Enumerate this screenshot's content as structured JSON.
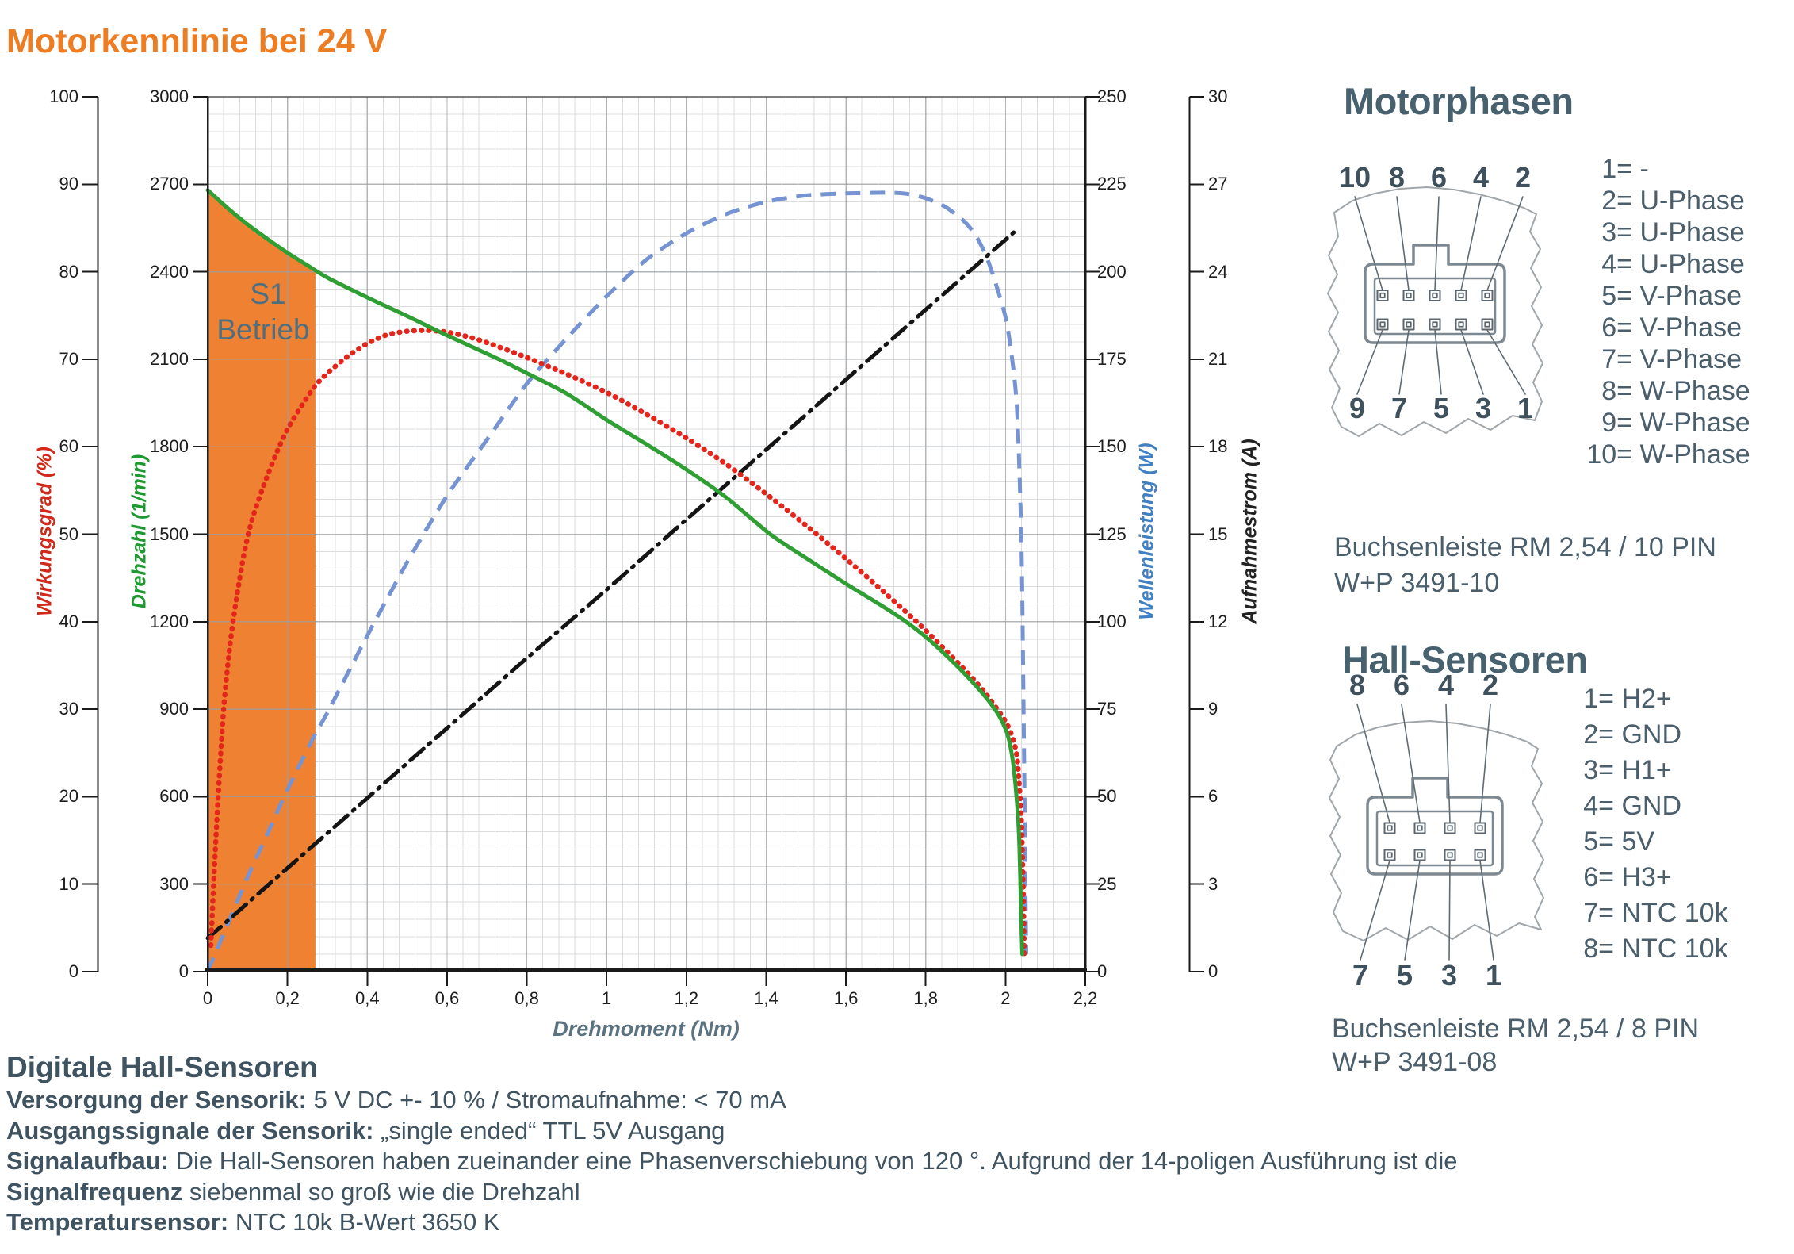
{
  "title": "Motorkennlinie bei 24 V",
  "chart_data": {
    "type": "line",
    "title": "Motorkennlinie bei 24 V",
    "x_axis": {
      "label": "Drehmoment (Nm)",
      "min": 0,
      "max": 2.2,
      "major_step": 0.2,
      "minor_step": 0.04,
      "tick_labels": [
        "0",
        "0,2",
        "0,4",
        "0,6",
        "0,8",
        "1",
        "1,2",
        "1,4",
        "1,6",
        "1,8",
        "2",
        "2,2"
      ]
    },
    "y_axes": [
      {
        "id": "wirkungsgrad",
        "label": "Wirkungsgrad (%)",
        "color": "#D2291B",
        "min": 0,
        "max": 100,
        "major_step": 10,
        "side": "left-outer"
      },
      {
        "id": "drehzahl",
        "label": "Drehzahl (1/min)",
        "color": "#1E9A31",
        "min": 0,
        "max": 3000,
        "major_step": 300,
        "minor_step": 60,
        "side": "left"
      },
      {
        "id": "wellenleistung",
        "label": "Wellenleistung (W)",
        "color": "#4181C3",
        "min": 0,
        "max": 250,
        "major_step": 25,
        "side": "right"
      },
      {
        "id": "aufnahmestrom",
        "label": "Aufnahmestrom (A)",
        "color": "#222222",
        "min": 0,
        "max": 30,
        "major_step": 3,
        "side": "right-outer"
      }
    ],
    "s1_region": {
      "label": [
        "S1",
        "Betrieb"
      ],
      "x_start": 0,
      "x_end": 0.27,
      "fill": "#EF8133"
    },
    "grid": true,
    "series": [
      {
        "name": "Drehzahl",
        "axis": "drehzahl",
        "color": "#2F9E33",
        "style": "solid",
        "points": [
          [
            0,
            2680
          ],
          [
            0.05,
            2618
          ],
          [
            0.1,
            2562
          ],
          [
            0.15,
            2512
          ],
          [
            0.2,
            2465
          ],
          [
            0.25,
            2422
          ],
          [
            0.3,
            2380
          ],
          [
            0.4,
            2312
          ],
          [
            0.5,
            2248
          ],
          [
            0.6,
            2182
          ],
          [
            0.73,
            2100
          ],
          [
            0.8,
            2052
          ],
          [
            0.9,
            1982
          ],
          [
            1.0,
            1892
          ],
          [
            1.11,
            1800
          ],
          [
            1.2,
            1722
          ],
          [
            1.3,
            1626
          ],
          [
            1.41,
            1500
          ],
          [
            1.5,
            1418
          ],
          [
            1.6,
            1330
          ],
          [
            1.7,
            1246
          ],
          [
            1.75,
            1200
          ],
          [
            1.8,
            1148
          ],
          [
            1.85,
            1086
          ],
          [
            1.9,
            1018
          ],
          [
            1.95,
            942
          ],
          [
            1.98,
            886
          ],
          [
            2.0,
            832
          ],
          [
            2.01,
            786
          ],
          [
            2.02,
            706
          ],
          [
            2.03,
            556
          ],
          [
            2.035,
            420
          ],
          [
            2.04,
            150
          ],
          [
            2.042,
            60
          ]
        ]
      },
      {
        "name": "Wirkungsgrad",
        "axis": "wirkungsgrad",
        "color": "#E3251C",
        "style": "dotted",
        "points": [
          [
            0.008,
            3
          ],
          [
            0.015,
            10
          ],
          [
            0.025,
            19
          ],
          [
            0.04,
            30
          ],
          [
            0.055,
            37
          ],
          [
            0.07,
            42
          ],
          [
            0.09,
            47.5
          ],
          [
            0.11,
            51.5
          ],
          [
            0.14,
            55.5
          ],
          [
            0.17,
            59
          ],
          [
            0.2,
            62
          ],
          [
            0.24,
            65
          ],
          [
            0.27,
            67
          ],
          [
            0.3,
            68.4
          ],
          [
            0.35,
            70.3
          ],
          [
            0.4,
            71.8
          ],
          [
            0.45,
            72.8
          ],
          [
            0.5,
            73.2
          ],
          [
            0.55,
            73.3
          ],
          [
            0.6,
            73.1
          ],
          [
            0.65,
            72.6
          ],
          [
            0.7,
            71.9
          ],
          [
            0.8,
            70.2
          ],
          [
            0.9,
            68.3
          ],
          [
            1.0,
            66.2
          ],
          [
            1.1,
            63.7
          ],
          [
            1.2,
            61
          ],
          [
            1.3,
            58
          ],
          [
            1.4,
            54.6
          ],
          [
            1.5,
            51
          ],
          [
            1.6,
            47.2
          ],
          [
            1.7,
            43.2
          ],
          [
            1.8,
            39
          ],
          [
            1.9,
            34.4
          ],
          [
            1.95,
            31.8
          ],
          [
            2.0,
            28.6
          ],
          [
            2.02,
            26.4
          ],
          [
            2.03,
            24
          ],
          [
            2.04,
            17
          ],
          [
            2.045,
            8
          ],
          [
            2.047,
            2
          ]
        ]
      },
      {
        "name": "Wellenleistung",
        "axis": "wellenleistung",
        "color": "#7693D2",
        "style": "dashed",
        "points": [
          [
            0,
            0
          ],
          [
            0.05,
            13.5
          ],
          [
            0.1,
            27
          ],
          [
            0.15,
            39.5
          ],
          [
            0.2,
            52
          ],
          [
            0.27,
            68
          ],
          [
            0.3,
            74
          ],
          [
            0.4,
            96
          ],
          [
            0.5,
            117
          ],
          [
            0.6,
            136
          ],
          [
            0.7,
            152
          ],
          [
            0.8,
            168
          ],
          [
            0.9,
            181
          ],
          [
            1.0,
            193
          ],
          [
            1.1,
            203.5
          ],
          [
            1.2,
            211
          ],
          [
            1.3,
            216.5
          ],
          [
            1.4,
            220
          ],
          [
            1.5,
            221.8
          ],
          [
            1.6,
            222.4
          ],
          [
            1.7,
            222.6
          ],
          [
            1.75,
            222.3
          ],
          [
            1.8,
            221
          ],
          [
            1.85,
            218.5
          ],
          [
            1.9,
            214
          ],
          [
            1.93,
            209.5
          ],
          [
            1.96,
            202
          ],
          [
            2.0,
            187
          ],
          [
            2.02,
            172
          ],
          [
            2.03,
            158
          ],
          [
            2.04,
            122
          ],
          [
            2.045,
            78
          ],
          [
            2.05,
            24
          ],
          [
            2.052,
            5
          ]
        ]
      },
      {
        "name": "Aufnahmestrom",
        "axis": "aufnahmestrom",
        "color": "#141414",
        "style": "dashdot",
        "points": [
          [
            0,
            1.15
          ],
          [
            0.03,
            1.5
          ],
          [
            0.1,
            2.35
          ],
          [
            0.2,
            3.55
          ],
          [
            0.4,
            5.95
          ],
          [
            0.6,
            8.35
          ],
          [
            0.8,
            10.75
          ],
          [
            1.0,
            13.1
          ],
          [
            1.2,
            15.5
          ],
          [
            1.4,
            17.9
          ],
          [
            1.6,
            20.3
          ],
          [
            1.8,
            22.7
          ],
          [
            1.9,
            23.9
          ],
          [
            2.0,
            25.1
          ],
          [
            2.033,
            25.5
          ]
        ]
      }
    ]
  },
  "motorphasen": {
    "heading": "Motorphasen",
    "pins_top": [
      "10",
      "8",
      "6",
      "4",
      "2"
    ],
    "pins_bottom": [
      "9",
      "7",
      "5",
      "3",
      "1"
    ],
    "legend": [
      {
        "pin": "1",
        "label": "-"
      },
      {
        "pin": "2",
        "label": "U-Phase"
      },
      {
        "pin": "3",
        "label": "U-Phase"
      },
      {
        "pin": "4",
        "label": "U-Phase"
      },
      {
        "pin": "5",
        "label": "V-Phase"
      },
      {
        "pin": "6",
        "label": "V-Phase"
      },
      {
        "pin": "7",
        "label": "V-Phase"
      },
      {
        "pin": "8",
        "label": "W-Phase"
      },
      {
        "pin": "9",
        "label": "W-Phase"
      },
      {
        "pin": "10",
        "label": "W-Phase"
      }
    ],
    "caption_line1": "Buchsenleiste RM 2,54 / 10 PIN",
    "caption_line2": "W+P 3491-10"
  },
  "hall_sensoren": {
    "heading": "Hall-Sensoren",
    "pins_top": [
      "8",
      "6",
      "4",
      "2"
    ],
    "pins_bottom": [
      "7",
      "5",
      "3",
      "1"
    ],
    "legend": [
      {
        "pin": "1",
        "label": "H2+"
      },
      {
        "pin": "2",
        "label": "GND"
      },
      {
        "pin": "3",
        "label": "H1+"
      },
      {
        "pin": "4",
        "label": "GND"
      },
      {
        "pin": "5",
        "label": "5V"
      },
      {
        "pin": "6",
        "label": "H3+"
      },
      {
        "pin": "7",
        "label": "NTC 10k"
      },
      {
        "pin": "8",
        "label": "NTC 10k"
      }
    ],
    "caption_line1": "Buchsenleiste RM 2,54 / 8 PIN",
    "caption_line2": "W+P 3491-08"
  },
  "bottom": {
    "heading": "Digitale Hall-Sensoren",
    "lines": [
      {
        "b": "Versorgung der Sensorik:",
        "t": " 5 V DC +- 10 % / Stromaufnahme: < 70 mA"
      },
      {
        "b": "Ausgangssignale der Sensorik:",
        "t": " „single ended“ TTL 5V Ausgang"
      },
      {
        "b": "Signalaufbau:",
        "t": " Die Hall-Sensoren haben zueinander eine Phasenverschiebung von 120 °. Aufgrund der 14-poligen Ausführung ist die"
      },
      {
        "b": "Signalfrequenz",
        "t": " siebenmal so groß wie die Drehzahl"
      },
      {
        "b": "Temperatursensor:",
        "t": " NTC 10k B-Wert 3650 K"
      }
    ]
  }
}
